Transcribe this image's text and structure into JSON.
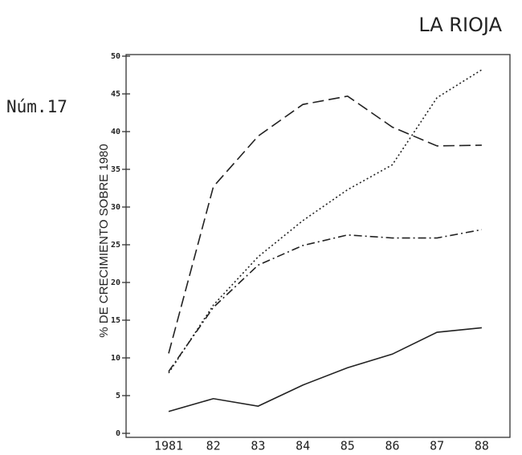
{
  "chart_data": {
    "type": "line",
    "title": "LA RIOJA",
    "subtitle": "Núm.17",
    "y_label": "% DE CRECIMIENTO SOBRE 1980",
    "categories": [
      "1981",
      "82",
      "83",
      "84",
      "85",
      "86",
      "87",
      "88"
    ],
    "series": [
      {
        "color": "#222",
        "linestyle": "solid",
        "values": [
          2.9,
          4.6,
          3.6,
          6.4,
          8.7,
          10.5,
          13.4,
          14.0
        ]
      },
      {
        "color": "#222",
        "linestyle": "dashed",
        "values": [
          10.6,
          32.7,
          39.4,
          43.6,
          44.7,
          40.6,
          38.1,
          38.2
        ]
      },
      {
        "color": "#222",
        "linestyle": "dotted",
        "values": [
          8.0,
          17.0,
          23.4,
          28.2,
          32.3,
          35.6,
          44.5,
          48.2
        ]
      },
      {
        "color": "#222",
        "linestyle": "dashdot",
        "values": [
          8.2,
          16.7,
          22.3,
          24.9,
          26.3,
          25.9,
          25.9,
          27.0
        ]
      }
    ],
    "ylim": [
      0,
      50
    ],
    "yticks": [
      0,
      5,
      10,
      15,
      20,
      25,
      30,
      35,
      40,
      45,
      50
    ],
    "grid": false
  }
}
